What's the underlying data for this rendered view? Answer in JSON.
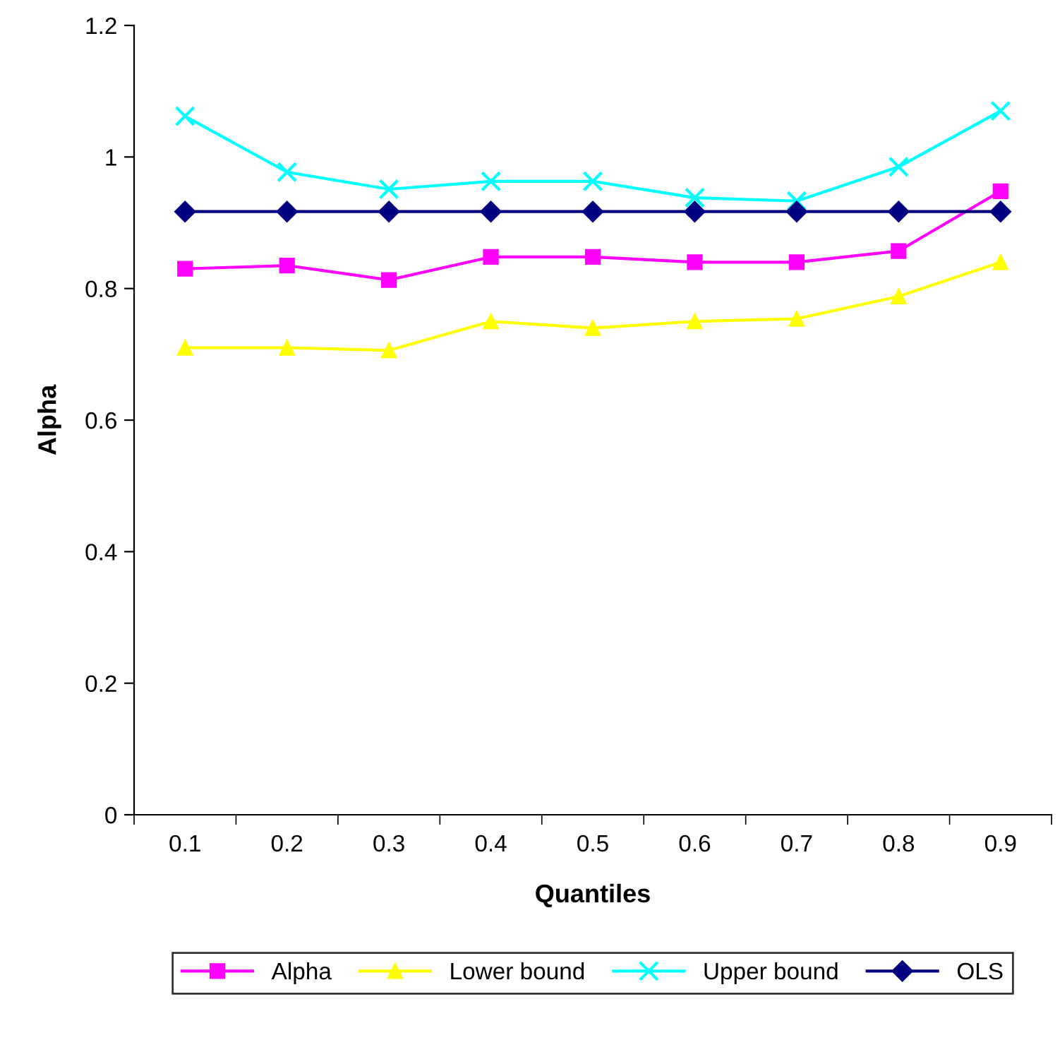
{
  "chart_data": {
    "type": "line",
    "xlabel": "Quantiles",
    "ylabel": "Alpha",
    "categories": [
      "0.1",
      "0.2",
      "0.3",
      "0.4",
      "0.5",
      "0.6",
      "0.7",
      "0.8",
      "0.9"
    ],
    "series": [
      {
        "name": "Alpha",
        "color": "#ff00ff",
        "marker": "square",
        "values": [
          0.83,
          0.835,
          0.813,
          0.848,
          0.848,
          0.84,
          0.84,
          0.857,
          0.948
        ]
      },
      {
        "name": "Lower bound",
        "color": "#ffff00",
        "marker": "triangle",
        "values": [
          0.71,
          0.71,
          0.706,
          0.75,
          0.74,
          0.75,
          0.754,
          0.788,
          0.84
        ]
      },
      {
        "name": "Upper bound",
        "color": "#00ffff",
        "marker": "cross",
        "values": [
          1.062,
          0.977,
          0.951,
          0.963,
          0.963,
          0.938,
          0.933,
          0.985,
          1.07
        ]
      },
      {
        "name": "OLS",
        "color": "#000080",
        "marker": "diamond",
        "values": [
          0.917,
          0.917,
          0.917,
          0.917,
          0.917,
          0.917,
          0.917,
          0.917,
          0.917
        ]
      }
    ],
    "ylim": [
      0,
      1.2
    ],
    "yticks": [
      0,
      0.2,
      0.4,
      0.6,
      0.8,
      1,
      1.2
    ],
    "legend": "bottom",
    "grid": false
  }
}
